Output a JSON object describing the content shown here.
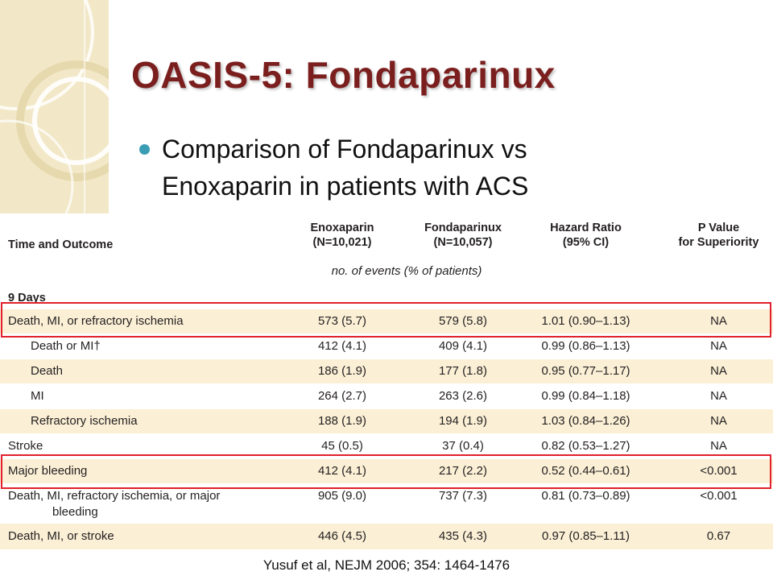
{
  "slide": {
    "title": "OASIS-5:  Fondaparinux",
    "bullet": "Comparison of Fondaparinux vs Enoxaparin in patients with ACS",
    "citation": "Yusuf et al, NEJM 2006; 354: 1464-1476",
    "accent_color": "#7b1e1e",
    "bullet_color": "#3a9db5",
    "highlight_color": "#e0202a"
  },
  "table": {
    "headers": {
      "time_outcome": "Time and Outcome",
      "enoxaparin": "Enoxaparin",
      "enoxaparin_n": "(N=10,021)",
      "fondaparinux": "Fondaparinux",
      "fondaparinux_n": "(N=10,057)",
      "hazard_ratio": "Hazard Ratio",
      "hazard_ci": "(95% CI)",
      "p_value": "P Value",
      "p_value_sub": "for Superiority"
    },
    "units": "no. of events (% of patients)",
    "section": "9 Days",
    "rows": [
      {
        "label": "Death, MI, or refractory ischemia",
        "enox": "573 (5.7)",
        "fonda": "579 (5.8)",
        "hr": "1.01 (0.90–1.13)",
        "p": "NA"
      },
      {
        "label": "Death or MI†",
        "enox": "412 (4.1)",
        "fonda": "409 (4.1)",
        "hr": "0.99 (0.86–1.13)",
        "p": "NA"
      },
      {
        "label": "Death",
        "enox": "186 (1.9)",
        "fonda": "177 (1.8)",
        "hr": "0.95 (0.77–1.17)",
        "p": "NA"
      },
      {
        "label": "MI",
        "enox": "264 (2.7)",
        "fonda": "263 (2.6)",
        "hr": "0.99 (0.84–1.18)",
        "p": "NA"
      },
      {
        "label": "Refractory ischemia",
        "enox": "188 (1.9)",
        "fonda": "194 (1.9)",
        "hr": "1.03 (0.84–1.26)",
        "p": "NA"
      },
      {
        "label": "Stroke",
        "enox": "45 (0.5)",
        "fonda": "37 (0.4)",
        "hr": "0.82 (0.53–1.27)",
        "p": "NA"
      },
      {
        "label": "Major bleeding",
        "enox": "412 (4.1)",
        "fonda": "217 (2.2)",
        "hr": "0.52 (0.44–0.61)",
        "p": "<0.001"
      },
      {
        "label": "Death, MI, refractory ischemia, or major",
        "label2": "bleeding",
        "enox": "905 (9.0)",
        "fonda": "737 (7.3)",
        "hr": "0.81 (0.73–0.89)",
        "p": "<0.001"
      },
      {
        "label": "Death, MI, or stroke",
        "enox": "446 (4.5)",
        "fonda": "435 (4.3)",
        "hr": "0.97 (0.85–1.11)",
        "p": "0.67"
      }
    ]
  }
}
